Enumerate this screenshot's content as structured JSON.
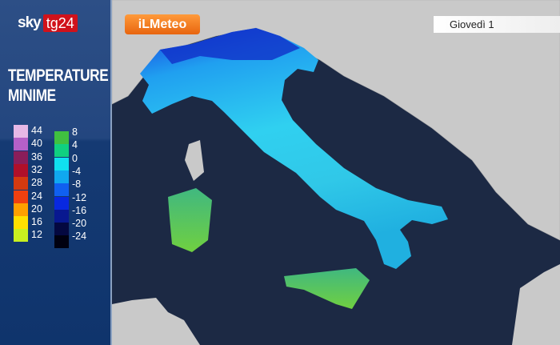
{
  "broadcaster": {
    "sky": "sky",
    "tg": "tg24"
  },
  "title_line1": "TEMPERATURE",
  "title_line2": "MINIME",
  "brand": "iLMeteo",
  "date_label": "Giovedì 1",
  "legend_warm": {
    "labels": [
      "44",
      "40",
      "36",
      "32",
      "28",
      "24",
      "20",
      "16",
      "12"
    ],
    "colors": [
      "#e6b8e6",
      "#b460c8",
      "#8a1e5a",
      "#b0102a",
      "#d43a10",
      "#f04010",
      "#ffa000",
      "#ffe000",
      "#c8f020"
    ]
  },
  "legend_cold": {
    "labels": [
      "8",
      "4",
      "0",
      "-4",
      "-8",
      "-12",
      "-16",
      "-20",
      "-24"
    ],
    "colors": [
      "#40c040",
      "#10d080",
      "#10e0f0",
      "#10a8f0",
      "#1060f0",
      "#0828e0",
      "#081890",
      "#040840",
      "#000010"
    ]
  }
}
